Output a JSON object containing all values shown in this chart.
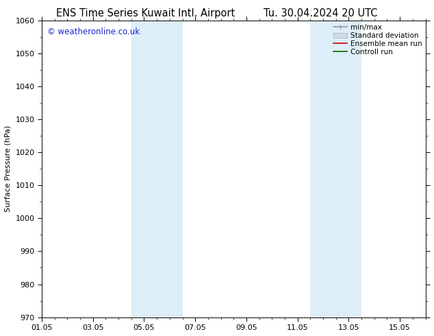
{
  "title_left": "ENS Time Series Kuwait Intl. Airport",
  "title_right": "Tu. 30.04.2024 20 UTC",
  "ylabel": "Surface Pressure (hPa)",
  "xlabel": "",
  "xlim_start": 0,
  "xlim_end": 15,
  "ylim": [
    970,
    1060
  ],
  "yticks": [
    970,
    980,
    990,
    1000,
    1010,
    1020,
    1030,
    1040,
    1050,
    1060
  ],
  "xtick_labels": [
    "01.05",
    "03.05",
    "05.05",
    "07.05",
    "09.05",
    "11.05",
    "13.05",
    "15.05"
  ],
  "xtick_positions": [
    0,
    2,
    4,
    6,
    8,
    10,
    12,
    14
  ],
  "shaded_regions": [
    {
      "x_start": 3.5,
      "x_end": 5.5,
      "color": "#ddeef8"
    },
    {
      "x_start": 10.5,
      "x_end": 12.5,
      "color": "#ddeef8"
    }
  ],
  "watermark_text": "© weatheronline.co.uk",
  "watermark_color": "#2222cc",
  "background_color": "#ffffff",
  "legend_items": [
    {
      "label": "min/max",
      "color": "#999999",
      "lw": 1.2,
      "ls": "-",
      "type": "line_tick"
    },
    {
      "label": "Standard deviation",
      "color": "#ccddee",
      "lw": 6,
      "ls": "-",
      "type": "patch"
    },
    {
      "label": "Ensemble mean run",
      "color": "#cc0000",
      "lw": 1.2,
      "ls": "-",
      "type": "line"
    },
    {
      "label": "Controll run",
      "color": "#006600",
      "lw": 1.2,
      "ls": "-",
      "type": "line"
    }
  ],
  "tick_font_size": 8,
  "label_font_size": 8,
  "title_font_size": 10.5
}
